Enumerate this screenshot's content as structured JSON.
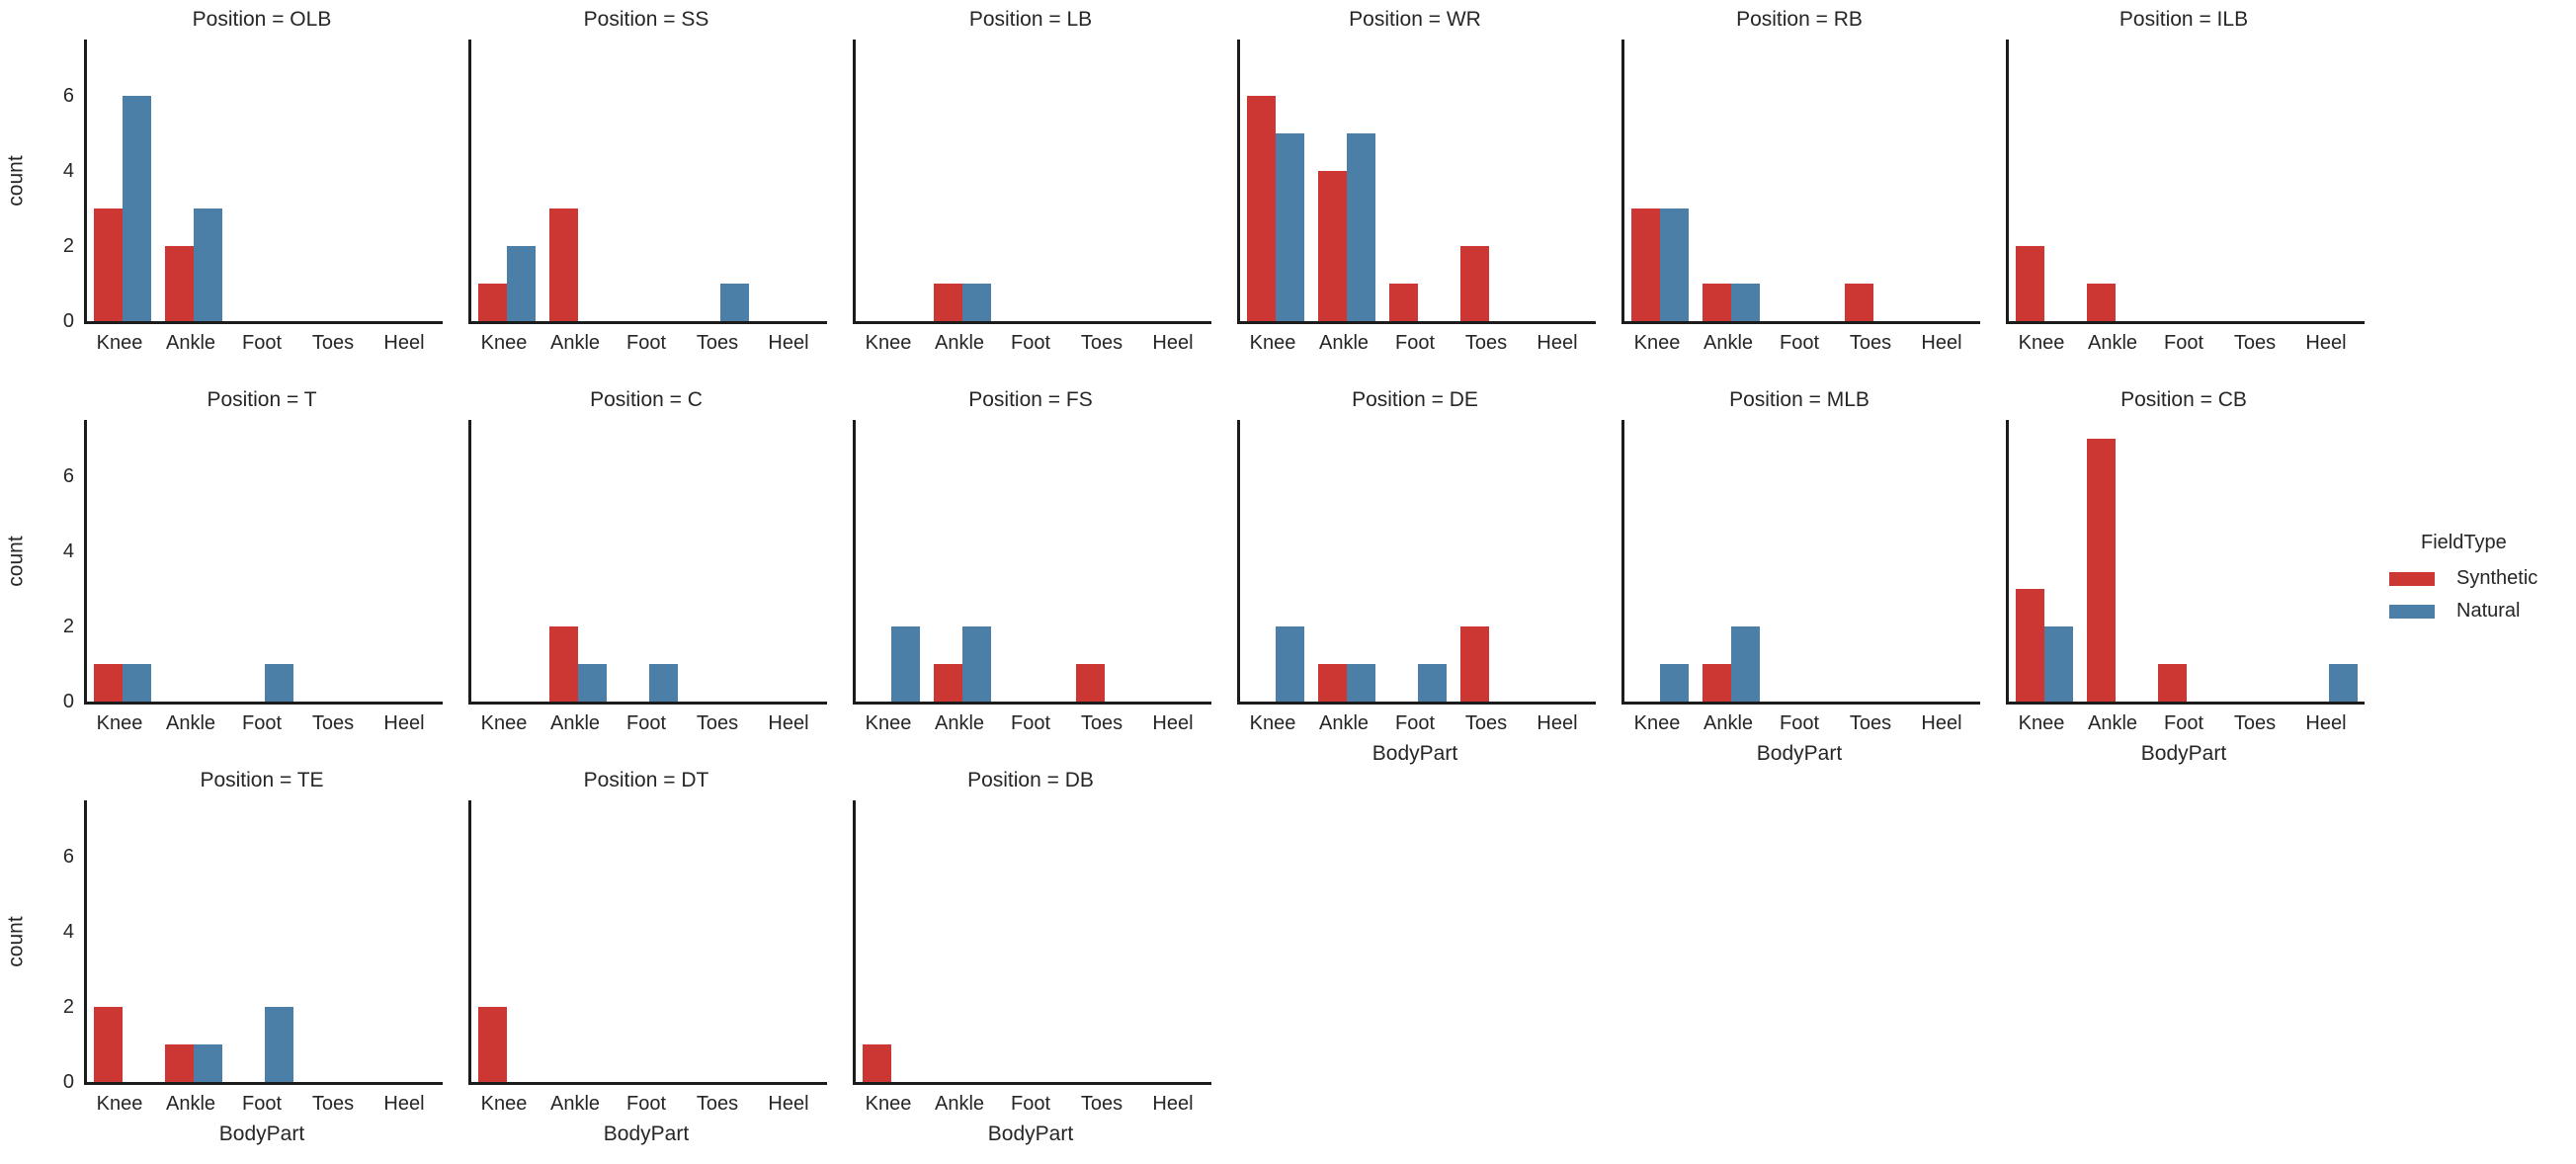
{
  "figure_title": "",
  "legend": {
    "title": "FieldType",
    "entries": [
      {
        "label": "Synthetic",
        "color": "#cc3733"
      },
      {
        "label": "Natural",
        "color": "#4c7fa8"
      }
    ]
  },
  "chart_data": {
    "type": "bar",
    "facet_by": "Position",
    "categories": [
      "Knee",
      "Ankle",
      "Foot",
      "Toes",
      "Heel"
    ],
    "xlabel": "BodyPart",
    "ylabel": "count",
    "yticks": [
      0,
      2,
      4,
      6
    ],
    "ylim": [
      0,
      7.5
    ],
    "grid": false,
    "legend_position": "right",
    "series_order": [
      "Synthetic",
      "Natural"
    ],
    "colors": {
      "Synthetic": "#cc3733",
      "Natural": "#4c7fa8"
    },
    "axis_color": "#1c1c1c",
    "text_color": "#262626",
    "facets": [
      {
        "position": "OLB",
        "title": "Position = OLB",
        "row": 0,
        "col": 0,
        "series": [
          {
            "name": "Synthetic",
            "values": [
              3,
              2,
              0,
              0,
              0
            ]
          },
          {
            "name": "Natural",
            "values": [
              6,
              3,
              0,
              0,
              0
            ]
          }
        ]
      },
      {
        "position": "SS",
        "title": "Position = SS",
        "row": 0,
        "col": 1,
        "series": [
          {
            "name": "Synthetic",
            "values": [
              1,
              3,
              0,
              0,
              0
            ]
          },
          {
            "name": "Natural",
            "values": [
              2,
              0,
              0,
              1,
              0
            ]
          }
        ]
      },
      {
        "position": "LB",
        "title": "Position = LB",
        "row": 0,
        "col": 2,
        "series": [
          {
            "name": "Synthetic",
            "values": [
              0,
              1,
              0,
              0,
              0
            ]
          },
          {
            "name": "Natural",
            "values": [
              0,
              1,
              0,
              0,
              0
            ]
          }
        ]
      },
      {
        "position": "WR",
        "title": "Position = WR",
        "row": 0,
        "col": 3,
        "series": [
          {
            "name": "Synthetic",
            "values": [
              6,
              4,
              1,
              2,
              0
            ]
          },
          {
            "name": "Natural",
            "values": [
              5,
              5,
              0,
              0,
              0
            ]
          }
        ]
      },
      {
        "position": "RB",
        "title": "Position = RB",
        "row": 0,
        "col": 4,
        "series": [
          {
            "name": "Synthetic",
            "values": [
              3,
              1,
              0,
              1,
              0
            ]
          },
          {
            "name": "Natural",
            "values": [
              3,
              1,
              0,
              0,
              0
            ]
          }
        ]
      },
      {
        "position": "ILB",
        "title": "Position = ILB",
        "row": 0,
        "col": 5,
        "series": [
          {
            "name": "Synthetic",
            "values": [
              2,
              1,
              0,
              0,
              0
            ]
          },
          {
            "name": "Natural",
            "values": [
              0,
              0,
              0,
              0,
              0
            ]
          }
        ]
      },
      {
        "position": "T",
        "title": "Position = T",
        "row": 1,
        "col": 0,
        "series": [
          {
            "name": "Synthetic",
            "values": [
              1,
              0,
              0,
              0,
              0
            ]
          },
          {
            "name": "Natural",
            "values": [
              1,
              0,
              1,
              0,
              0
            ]
          }
        ]
      },
      {
        "position": "C",
        "title": "Position = C",
        "row": 1,
        "col": 1,
        "series": [
          {
            "name": "Synthetic",
            "values": [
              0,
              2,
              0,
              0,
              0
            ]
          },
          {
            "name": "Natural",
            "values": [
              0,
              1,
              1,
              0,
              0
            ]
          }
        ]
      },
      {
        "position": "FS",
        "title": "Position = FS",
        "row": 1,
        "col": 2,
        "series": [
          {
            "name": "Synthetic",
            "values": [
              0,
              1,
              0,
              1,
              0
            ]
          },
          {
            "name": "Natural",
            "values": [
              2,
              2,
              0,
              0,
              0
            ]
          }
        ]
      },
      {
        "position": "DE",
        "title": "Position = DE",
        "row": 1,
        "col": 3,
        "series": [
          {
            "name": "Synthetic",
            "values": [
              0,
              1,
              0,
              2,
              0
            ]
          },
          {
            "name": "Natural",
            "values": [
              2,
              1,
              1,
              0,
              0
            ]
          }
        ]
      },
      {
        "position": "MLB",
        "title": "Position = MLB",
        "row": 1,
        "col": 4,
        "series": [
          {
            "name": "Synthetic",
            "values": [
              0,
              1,
              0,
              0,
              0
            ]
          },
          {
            "name": "Natural",
            "values": [
              1,
              2,
              0,
              0,
              0
            ]
          }
        ]
      },
      {
        "position": "CB",
        "title": "Position = CB",
        "row": 1,
        "col": 5,
        "series": [
          {
            "name": "Synthetic",
            "values": [
              3,
              7,
              1,
              0,
              0
            ]
          },
          {
            "name": "Natural",
            "values": [
              2,
              0,
              0,
              0,
              1
            ]
          }
        ]
      },
      {
        "position": "TE",
        "title": "Position = TE",
        "row": 2,
        "col": 0,
        "series": [
          {
            "name": "Synthetic",
            "values": [
              2,
              1,
              0,
              0,
              0
            ]
          },
          {
            "name": "Natural",
            "values": [
              0,
              1,
              2,
              0,
              0
            ]
          }
        ]
      },
      {
        "position": "DT",
        "title": "Position = DT",
        "row": 2,
        "col": 1,
        "series": [
          {
            "name": "Synthetic",
            "values": [
              2,
              0,
              0,
              0,
              0
            ]
          },
          {
            "name": "Natural",
            "values": [
              0,
              0,
              0,
              0,
              0
            ]
          }
        ]
      },
      {
        "position": "DB",
        "title": "Position = DB",
        "row": 2,
        "col": 2,
        "series": [
          {
            "name": "Synthetic",
            "values": [
              1,
              0,
              0,
              0,
              0
            ]
          },
          {
            "name": "Natural",
            "values": [
              0,
              0,
              0,
              0,
              0
            ]
          }
        ]
      }
    ]
  }
}
